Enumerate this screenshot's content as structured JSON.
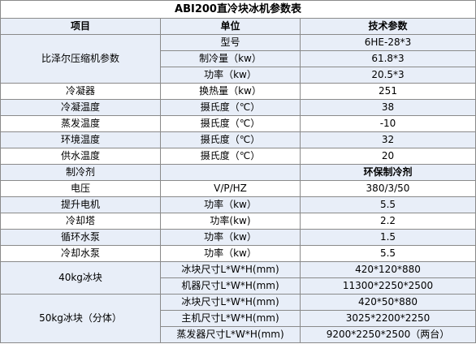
{
  "title": "ABI200直冷块冰机参数表",
  "headers": {
    "item": "项目",
    "unit": "单位",
    "param": "技术参数"
  },
  "compressor": {
    "label": "比泽尔压缩机参数",
    "rows": [
      {
        "unit": "型号",
        "value": "6HE-28*3"
      },
      {
        "unit": "制冷量（kw）",
        "value": "61.8*3"
      },
      {
        "unit": "功率（kw）",
        "value": "20.5*3"
      }
    ]
  },
  "simple_rows": [
    {
      "item": "冷凝器",
      "unit": "换热量（kw）",
      "value": "251"
    },
    {
      "item": "冷凝温度",
      "unit": "摄氏度（℃）",
      "value": "38"
    },
    {
      "item": "蒸发温度",
      "unit": "摄氏度（℃）",
      "value": "-10"
    },
    {
      "item": "环境温度",
      "unit": "摄氏度（℃）",
      "value": "32"
    },
    {
      "item": "供水温度",
      "unit": "摄氏度（℃）",
      "value": "20"
    },
    {
      "item": "制冷剂",
      "unit": "",
      "value": "环保制冷剂"
    },
    {
      "item": "电压",
      "unit": "V/P/HZ",
      "value": "380/3/50"
    },
    {
      "item": "提升电机",
      "unit": "功率（kw）",
      "value": "5.5"
    },
    {
      "item": "冷却塔",
      "unit": "功率(kw)",
      "value": "2.2"
    },
    {
      "item": "循环水泵",
      "unit": "功率（kw）",
      "value": "1.5"
    },
    {
      "item": "冷却水泵",
      "unit": "功率（kw）",
      "value": "5.5"
    }
  ],
  "ice40": {
    "label": "40kg冰块",
    "rows": [
      {
        "unit": "冰块尺寸L*W*H(mm)",
        "value": "420*120*880"
      },
      {
        "unit": "机器尺寸L*W*H(mm)",
        "value": "11300*2250*2500"
      }
    ]
  },
  "ice50": {
    "label": "50kg冰块（分体）",
    "rows": [
      {
        "unit": "冰块尺寸L*W*H(mm)",
        "value": "420*50*880"
      },
      {
        "unit": "主机尺寸L*W*H(mm)",
        "value": "3025*2200*2250"
      },
      {
        "unit": "蒸发器尺寸L*W*H(mm)",
        "value": "9200*2250*2500（两台）"
      }
    ]
  }
}
